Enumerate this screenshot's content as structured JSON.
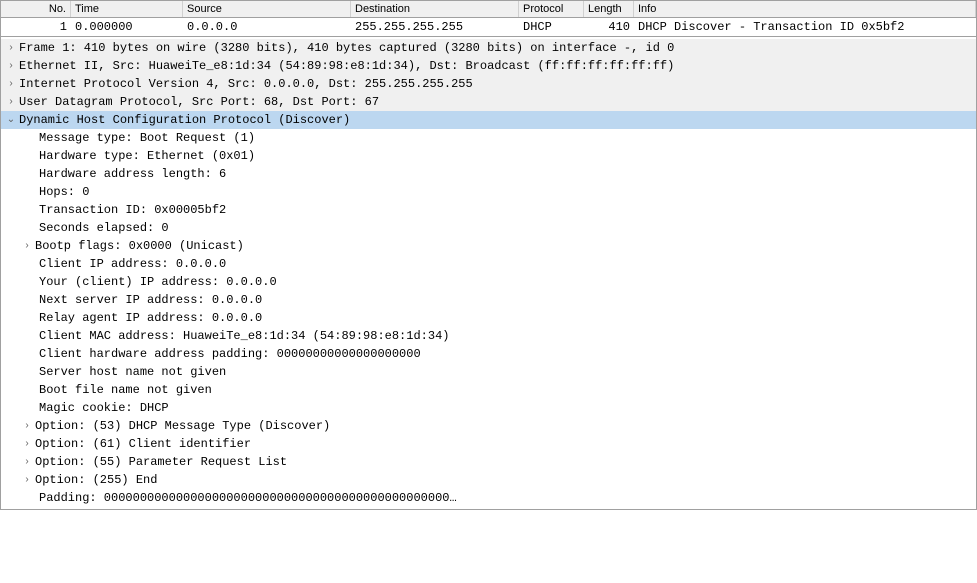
{
  "columns": {
    "no": "No.",
    "time": "Time",
    "source": "Source",
    "destination": "Destination",
    "protocol": "Protocol",
    "length": "Length",
    "info": "Info"
  },
  "packet": {
    "no": "1",
    "time": "0.000000",
    "source": "0.0.0.0",
    "destination": "255.255.255.255",
    "protocol": "DHCP",
    "length": "410",
    "info": "DHCP Discover - Transaction ID 0x5bf2"
  },
  "tree": {
    "frame": "Frame 1: 410 bytes on wire (3280 bits), 410 bytes captured (3280 bits) on interface -, id 0",
    "eth": "Ethernet II, Src: HuaweiTe_e8:1d:34 (54:89:98:e8:1d:34), Dst: Broadcast (ff:ff:ff:ff:ff:ff)",
    "ip": "Internet Protocol Version 4, Src: 0.0.0.0, Dst: 255.255.255.255",
    "udp": "User Datagram Protocol, Src Port: 68, Dst Port: 67",
    "dhcp": "Dynamic Host Configuration Protocol (Discover)",
    "msg_type": "Message type: Boot Request (1)",
    "hw_type": "Hardware type: Ethernet (0x01)",
    "hw_len": "Hardware address length: 6",
    "hops": "Hops: 0",
    "xid": "Transaction ID: 0x00005bf2",
    "secs": "Seconds elapsed: 0",
    "flags": "Bootp flags: 0x0000 (Unicast)",
    "ciaddr": "Client IP address: 0.0.0.0",
    "yiaddr": "Your (client) IP address: 0.0.0.0",
    "siaddr": "Next server IP address: 0.0.0.0",
    "giaddr": "Relay agent IP address: 0.0.0.0",
    "chaddr": "Client MAC address: HuaweiTe_e8:1d:34 (54:89:98:e8:1d:34)",
    "chpad": "Client hardware address padding: 00000000000000000000",
    "sname": "Server host name not given",
    "bfile": "Boot file name not given",
    "cookie": "Magic cookie: DHCP",
    "opt53": "Option: (53) DHCP Message Type (Discover)",
    "opt61": "Option: (61) Client identifier",
    "opt55": "Option: (55) Parameter Request List",
    "opt255": "Option: (255) End",
    "padding": "Padding: 000000000000000000000000000000000000000000000000…"
  },
  "glyph": {
    "collapsed": "›",
    "expanded": "⌄"
  }
}
